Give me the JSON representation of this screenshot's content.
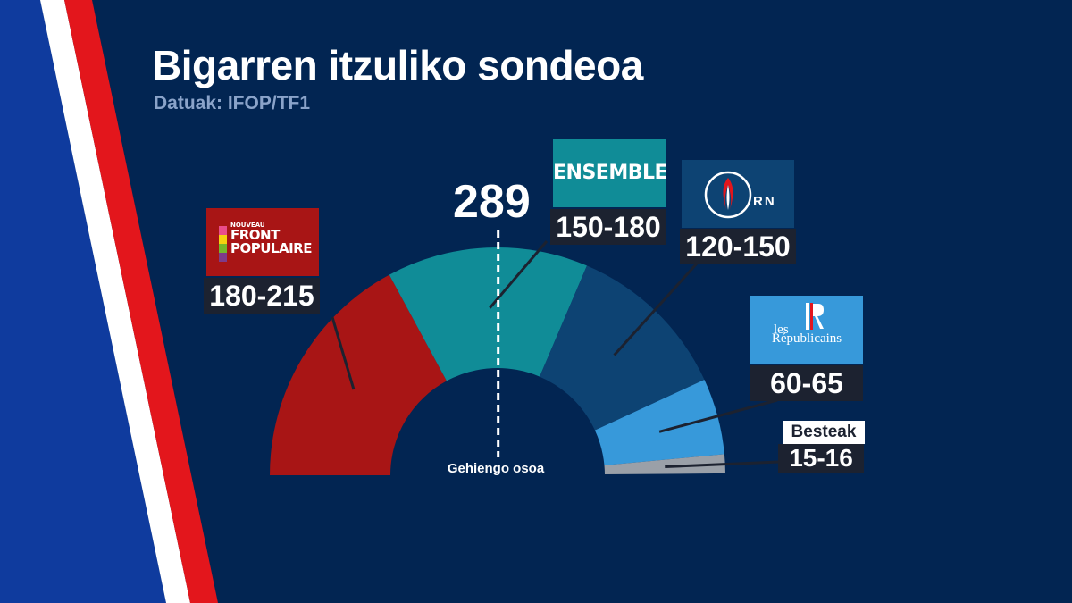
{
  "title": "Bigarren itzuliko sondeoa",
  "subtitle": "Datuak: IFOP/TF1",
  "colors": {
    "background": "#022552",
    "stripe_blue": "#0f3b9e",
    "stripe_white": "#ffffff",
    "stripe_red": "#e3161c",
    "label_box": "#1c2230"
  },
  "majority": {
    "value": 289,
    "label": "Gehiengo osoa"
  },
  "logos": {
    "nfp": {
      "small": "NOUVEAU",
      "line1": "FRONT",
      "line2": "POPULAIRE"
    },
    "ensemble": "ENSEMBLE",
    "rn": "RN",
    "lr": {
      "line1": "les",
      "line2": "Républicains"
    }
  },
  "chart_data": {
    "type": "pie",
    "variant": "semicircle-hemicycle",
    "categories": [
      "Nouveau Front Populaire",
      "Ensemble",
      "RN",
      "Les Républicains",
      "Besteak"
    ],
    "labels": [
      "180-215",
      "150-180",
      "120-150",
      "60-65",
      "15-16"
    ],
    "low": [
      180,
      150,
      120,
      60,
      15
    ],
    "high": [
      215,
      180,
      150,
      65,
      16
    ],
    "values": [
      197.5,
      165,
      135,
      62.5,
      15.5
    ],
    "colors": [
      "#a81515",
      "#108c97",
      "#0d4373",
      "#3799da",
      "#9aa0a8"
    ],
    "besteak_label": "Besteak",
    "majority_line": 289
  }
}
